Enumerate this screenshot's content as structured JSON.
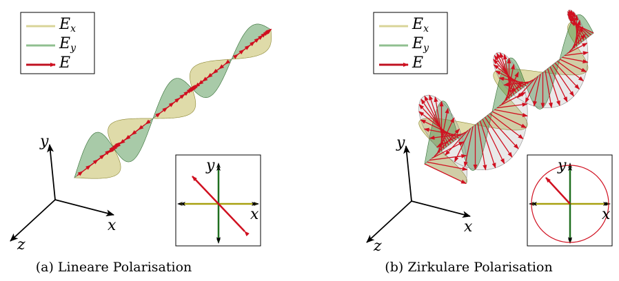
{
  "panels": [
    {
      "legend": [
        {
          "label": "E",
          "subscript": "x"
        },
        {
          "label": "E",
          "subscript": "y"
        },
        {
          "label": "E"
        }
      ],
      "axes": {
        "y": "y",
        "x": "x",
        "z": "z"
      },
      "inset": {
        "y": "y",
        "x": "x"
      },
      "caption": "(a) Lineare Polarisation"
    },
    {
      "legend": [
        {
          "label": "E",
          "subscript": "x"
        },
        {
          "label": "E",
          "subscript": "y"
        },
        {
          "label": "E"
        }
      ],
      "axes": {
        "y": "y",
        "x": "x",
        "z": "z"
      },
      "inset": {
        "y": "y",
        "x": "x"
      },
      "caption": "(b) Zirkulare Polarisation"
    }
  ]
}
